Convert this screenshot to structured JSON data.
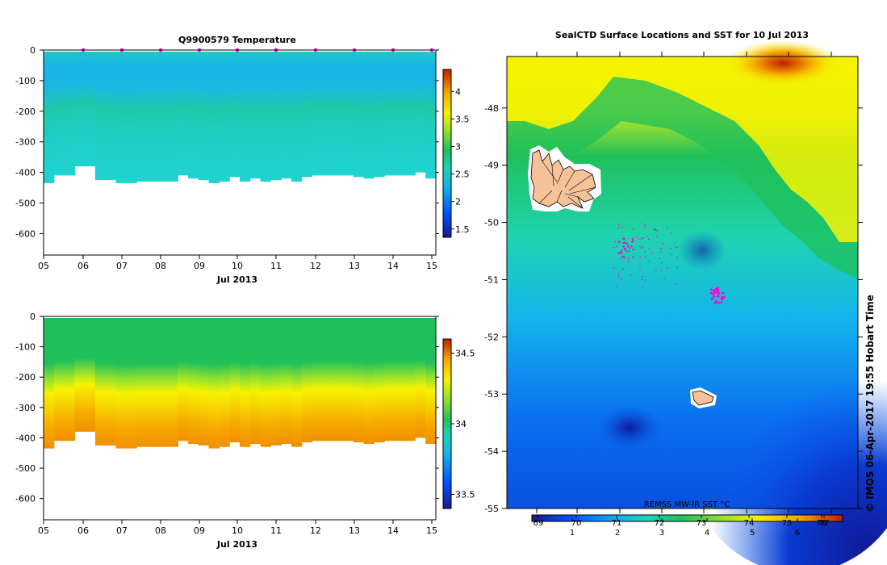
{
  "chart_data": [
    {
      "type": "heatmap",
      "title": "Q9900579  Temperature",
      "xlabel": "Jul 2013",
      "x_ticks": [
        "05",
        "06",
        "07",
        "08",
        "09",
        "10",
        "11",
        "12",
        "13",
        "14",
        "15"
      ],
      "y_ticks": [
        "0",
        "-100",
        "-200",
        "-300",
        "-400",
        "-500",
        "-600"
      ],
      "ylim": [
        -670,
        0
      ],
      "colorbar": {
        "ticks": [
          "4",
          "3.5",
          "3",
          "2.5",
          "2",
          "1.5"
        ],
        "range": [
          1.35,
          4.4
        ]
      },
      "profile_depths": [
        -435,
        -410,
        -410,
        -380,
        -380,
        -425,
        -425,
        -435,
        -435,
        -430,
        -430,
        -430,
        -430,
        -410,
        -420,
        -425,
        -435,
        -430,
        -415,
        -430,
        -420,
        -430,
        -425,
        -420,
        -430,
        -415,
        -410,
        -410,
        -410,
        -410,
        -415,
        -420,
        -415,
        -410,
        -410,
        -410,
        -400,
        -420
      ]
    },
    {
      "type": "heatmap",
      "title": "",
      "xlabel": "Jul 2013",
      "x_ticks": [
        "05",
        "06",
        "07",
        "08",
        "09",
        "10",
        "11",
        "12",
        "13",
        "14",
        "15"
      ],
      "y_ticks": [
        "0",
        "-100",
        "-200",
        "-300",
        "-400",
        "-500",
        "-600"
      ],
      "ylim": [
        -670,
        0
      ],
      "colorbar": {
        "ticks": [
          "34.5",
          "34",
          "33.5"
        ],
        "range": [
          33.4,
          34.6
        ]
      }
    },
    {
      "type": "heatmap",
      "title": "SealCTD Surface Locations and SST for 10 Jul 2013",
      "y_ticks": [
        "-48",
        "-49",
        "-50",
        "-51",
        "-52",
        "-53",
        "-54",
        "-55"
      ],
      "ylim": [
        -55,
        -47.1
      ],
      "colorbar": {
        "label": "REMSS MW-IR SST °C",
        "ticks_f": [
          "69",
          "70",
          "71",
          "72",
          "73",
          "74",
          "75",
          "76",
          "77"
        ],
        "ticks_c": [
          "1",
          "2",
          "3",
          "4",
          "5",
          "6"
        ]
      }
    }
  ],
  "credit": "© IMOS 06-Apr-2017 19:55 Hobart Time"
}
